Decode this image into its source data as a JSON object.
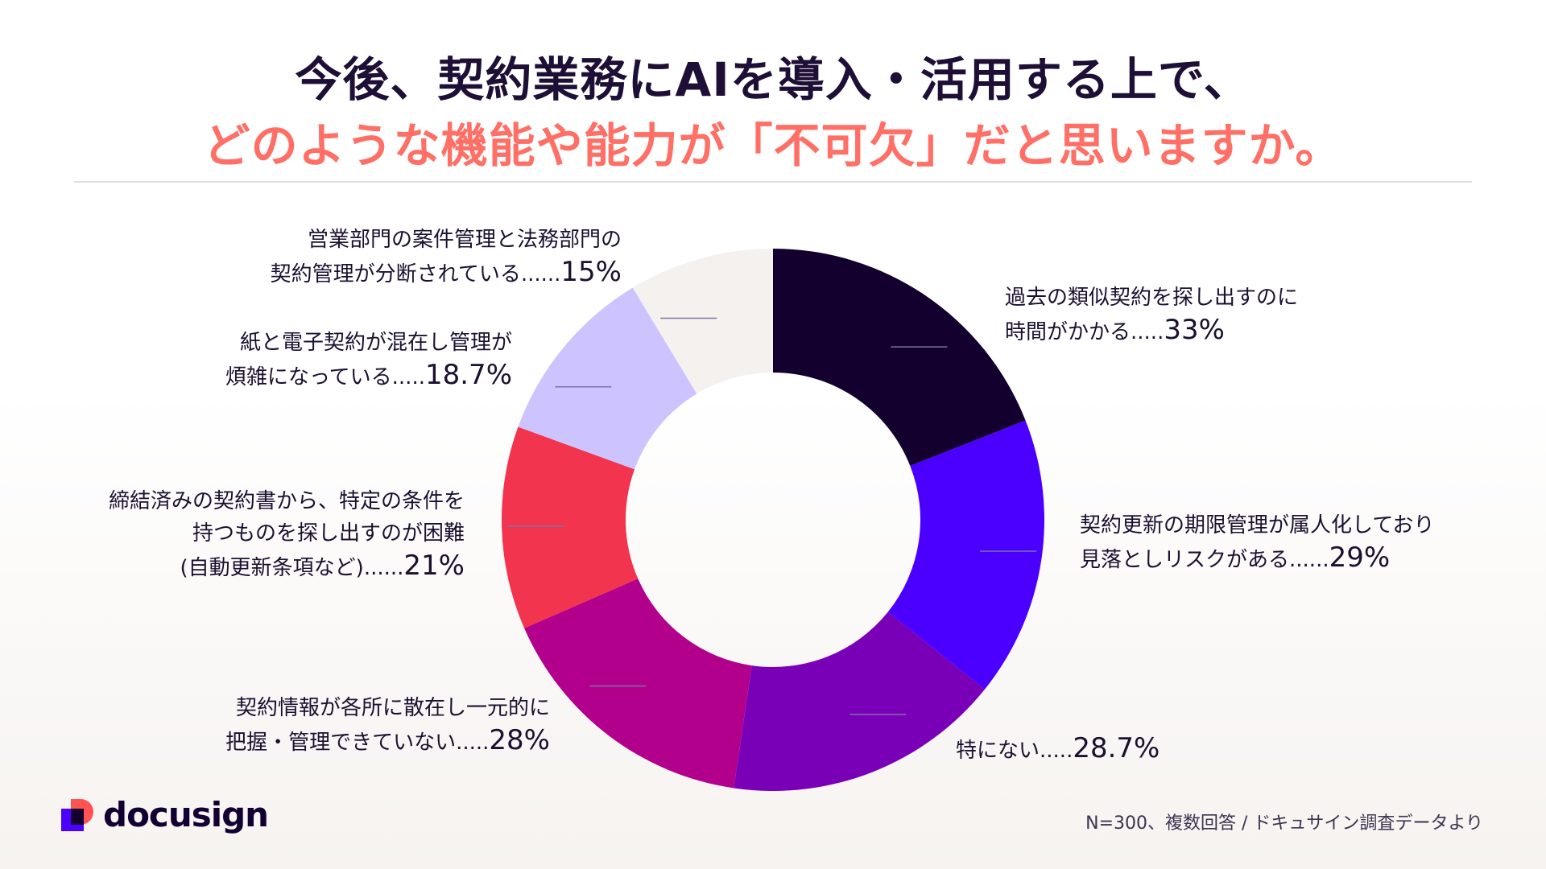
{
  "title": {
    "line1": "今後、契約業務にAIを導入・活用する上で、",
    "line2": "どのような機能や能力が「不可欠」だと思いますか。"
  },
  "chart_data": {
    "type": "donut",
    "title": "今後、契約業務にAIを導入・活用する上で、どのような機能や能力が「不可欠」だと思いますか。",
    "unit": "%",
    "series": [
      {
        "label_lines": [
          "過去の類似契約を探し出すのに",
          "時間がかかる"
        ],
        "dots": ".....",
        "value": 33,
        "value_text": "33%",
        "color": "#13002f"
      },
      {
        "label_lines": [
          "契約更新の期限管理が属人化しており",
          "見落としリスクがある"
        ],
        "dots": "......",
        "value": 29,
        "value_text": "29%",
        "color": "#4b00ff"
      },
      {
        "label_lines": [
          "特にない"
        ],
        "dots": ".....",
        "value": 28.7,
        "value_text": "28.7%",
        "color": "#7a00b8"
      },
      {
        "label_lines": [
          "契約情報が各所に散在し一元的に",
          "把握・管理できていない"
        ],
        "dots": ".....",
        "value": 28,
        "value_text": "28%",
        "color": "#b3008c"
      },
      {
        "label_lines": [
          "締結済みの契約書から、特定の条件を",
          "持つものを探し出すのが困難",
          "(自動更新条項など)"
        ],
        "dots": "......",
        "value": 21,
        "value_text": "21%",
        "color": "#f2344e"
      },
      {
        "label_lines": [
          "紙と電子契約が混在し管理が",
          "煩雑になっている"
        ],
        "dots": ".....",
        "value": 18.7,
        "value_text": "18.7%",
        "color": "#cdc4ff"
      },
      {
        "label_lines": [
          "営業部門の案件管理と法務部門の",
          "契約管理が分断されている"
        ],
        "dots": "......",
        "value": 15,
        "value_text": "15%",
        "color": "#f5f1ee"
      }
    ]
  },
  "logo": {
    "name": "docusign",
    "colors": {
      "square": "#4c00ff",
      "d_shape": "#ff5252",
      "overlap": "#13002f"
    }
  },
  "footnote": "N=300、複数回答 / ドキュサイン調査データより"
}
